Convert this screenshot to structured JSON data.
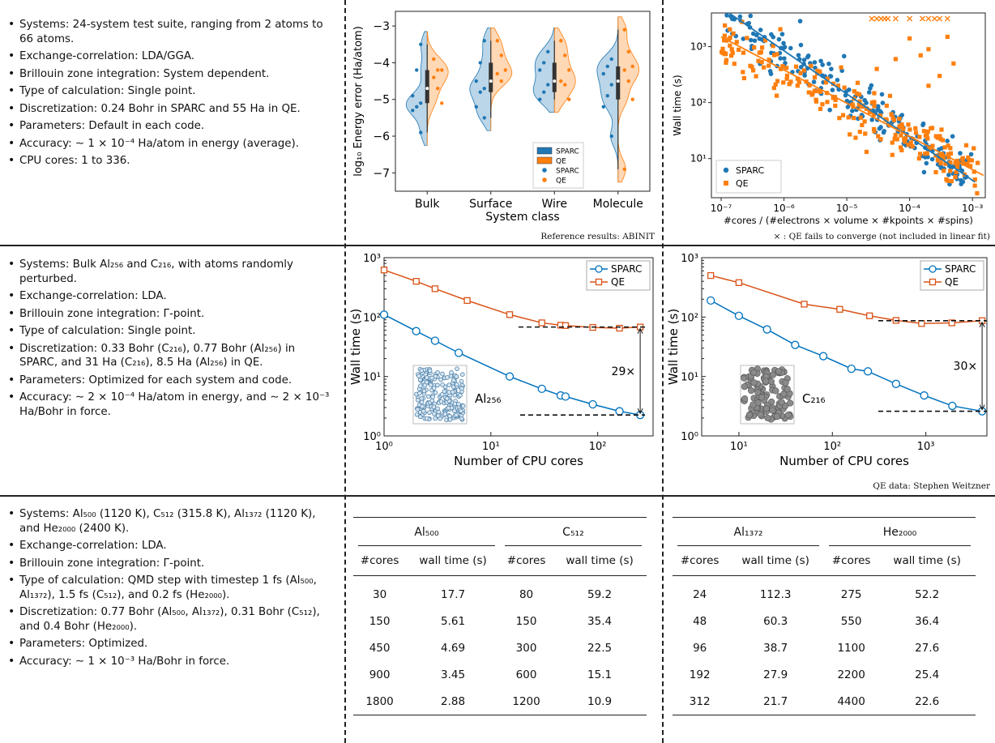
{
  "row1": {
    "bullets": [
      "Systems: 24-system test suite, ranging from 2 atoms to 66 atoms.",
      "Exchange-correlation: LDA/GGA.",
      "Brillouin zone integration: System dependent.",
      "Type of calculation: Single point.",
      "Discretization: 0.24 Bohr in SPARC and 55 Ha in QE.",
      "Parameters: Default in each code.",
      "Accuracy: ∼ 1 × 10⁻⁴ Ha/atom in energy (average).",
      "CPU cores: 1 to 336."
    ],
    "violin_caption": "Reference results: ABINIT",
    "scatter_caption": "× : QE fails to converge (not included in linear fit)"
  },
  "row2": {
    "bullets": [
      "Systems: Bulk Al₂₅₆ and C₂₁₆, with atoms randomly perturbed.",
      "Exchange-correlation: LDA.",
      "Brillouin zone integration: Γ-point.",
      "Type of calculation: Single point.",
      "Discretization: 0.33 Bohr (C₂₁₆), 0.77 Bohr (Al₂₅₆) in SPARC, and 31 Ha (C₂₁₆), 8.5 Ha (Al₂₅₆) in QE.",
      "Parameters: Optimized for each system and code.",
      "Accuracy: ∼ 2 × 10⁻⁴ Ha/atom in energy, and ∼ 2 × 10⁻³ Ha/Bohr in force."
    ],
    "right_caption": "QE data: Stephen Weitzner"
  },
  "row3": {
    "bullets": [
      "Systems: Al₅₀₀ (1120 K), C₅₁₂ (315.8 K), Al₁₃₇₂ (1120 K), and He₂₀₀₀ (2400 K).",
      "Exchange-correlation: LDA.",
      "Brillouin zone integration: Γ-point.",
      "Type of calculation: QMD step with timestep 1 fs (Al₅₀₀, Al₁₃₇₂), 1.5 fs (C₅₁₂), and 0.2 fs (He₂₀₀₀).",
      "Discretization: 0.77 Bohr (Al₅₀₀, Al₁₃₇₂), 0.31 Bohr (C₅₁₂), and 0.4 Bohr (He₂₀₀₀).",
      "Parameters: Optimized.",
      "Accuracy: ∼ 1 × 10⁻³ Ha/Bohr in force."
    ]
  },
  "colors": {
    "sparc": "#1f77b4",
    "qe": "#ff7f0e",
    "qe_line": "#d95319",
    "sparc_line": "#0072bd"
  },
  "chart_data": [
    {
      "id": "violin",
      "type": "violin",
      "xlabel": "System class",
      "ylabel": "log₁₀ Energy error (Ha/atom)",
      "categories": [
        "Bulk",
        "Surface",
        "Wire",
        "Molecule"
      ],
      "ylim": [
        -7.5,
        -2.6
      ],
      "yticks": [
        -3,
        -4,
        -5,
        -6,
        -7
      ],
      "legend": [
        "SPARC",
        "QE",
        "SPARC",
        "QE"
      ],
      "legend_position": "bottom-right",
      "series": [
        {
          "name": "SPARC",
          "points": [
            [
              -3.5,
              -4.2,
              -4.9,
              -5.1,
              -5.2,
              -5.3,
              -5.9
            ],
            [
              -3.4,
              -4.0,
              -4.5,
              -4.7,
              -4.8,
              -5.2,
              -5.5
            ],
            [
              -3.7,
              -4.0,
              -4.2,
              -4.6,
              -4.8,
              -5.0
            ],
            [
              -3.9,
              -4.1,
              -4.3,
              -4.6,
              -4.9,
              -5.2,
              -6.0
            ]
          ]
        },
        {
          "name": "QE",
          "points": [
            [
              -3.9,
              -4.2,
              -4.2,
              -4.4,
              -4.7,
              -5.1
            ],
            [
              -3.4,
              -3.8,
              -4.2,
              -4.3,
              -4.5
            ],
            [
              -3.4,
              -3.8,
              -4.2,
              -4.5,
              -4.6,
              -5.0
            ],
            [
              -3.1,
              -3.7,
              -4.1,
              -4.2,
              -4.5,
              -5.0,
              -6.9
            ]
          ]
        }
      ]
    },
    {
      "id": "scatter",
      "type": "scatter",
      "xlabel": "#cores / (#electrons × volume × #kpoints × #spins)",
      "ylabel": "Wall time (s)",
      "xscale": "log",
      "yscale": "log",
      "xlim": [
        7e-08,
        0.0016
      ],
      "ylim": [
        2,
        4000
      ],
      "xticks": [
        "10⁻⁷",
        "10⁻⁶",
        "10⁻⁵",
        "10⁻⁴",
        "10⁻³"
      ],
      "yticks": [
        "10¹",
        "10²",
        "10³"
      ],
      "legend": [
        "SPARC",
        "QE"
      ],
      "legend_position": "bottom-left",
      "fit_sparc": [
        [
          1e-07,
          5000
        ],
        [
          0.0011,
          3.8
        ]
      ],
      "fit_qe": [
        [
          1e-07,
          1500
        ],
        [
          0.0015,
          5
        ]
      ],
      "qe_fail_x": [
        2.5e-05,
        3e-05,
        3.5e-05,
        4e-05,
        4.5e-05,
        6e-05,
        0.0001,
        0.00016,
        0.0002,
        0.00025,
        0.0003,
        0.0004
      ]
    },
    {
      "id": "al256",
      "type": "line",
      "xlabel": "Number of CPU cores",
      "ylabel": "Wall time (s)",
      "xscale": "log",
      "yscale": "log",
      "xlim": [
        1,
        330
      ],
      "ylim": [
        1,
        1000
      ],
      "xticks": [
        "10⁰",
        "10¹",
        "10²"
      ],
      "yticks": [
        "10⁰",
        "10¹",
        "10²",
        "10³"
      ],
      "legend": [
        "SPARC",
        "QE"
      ],
      "legend_position": "top-right",
      "annotation": "29×",
      "system_label": "Al₂₅₆",
      "series": [
        {
          "name": "SPARC",
          "x": [
            1,
            2,
            3,
            5,
            15,
            30,
            45,
            50,
            90,
            160,
            250
          ],
          "y": [
            110,
            58,
            40,
            25,
            10,
            6.2,
            4.8,
            4.6,
            3.4,
            2.6,
            2.25
          ]
        },
        {
          "name": "QE",
          "x": [
            1,
            2,
            3,
            6,
            15,
            30,
            45,
            50,
            90,
            160,
            250
          ],
          "y": [
            620,
            400,
            300,
            190,
            110,
            80,
            73,
            72,
            67,
            65,
            68
          ]
        }
      ]
    },
    {
      "id": "c216",
      "type": "line",
      "xlabel": "Number of CPU cores",
      "ylabel": "Wall time (s)",
      "xscale": "log",
      "yscale": "log",
      "xlim": [
        4,
        4500
      ],
      "ylim": [
        1,
        1000
      ],
      "xticks": [
        "10¹",
        "10²",
        "10³"
      ],
      "yticks": [
        "10⁰",
        "10¹",
        "10²",
        "10³"
      ],
      "legend": [
        "SPARC",
        "QE"
      ],
      "legend_position": "top-right",
      "annotation": "30×",
      "system_label": "C₂₁₆",
      "series": [
        {
          "name": "SPARC",
          "x": [
            5,
            10,
            20,
            40,
            80,
            160,
            240,
            480,
            960,
            1920,
            4000
          ],
          "y": [
            190,
            105,
            62,
            34,
            22,
            13.5,
            12.2,
            7.5,
            4.8,
            3.2,
            2.6
          ]
        },
        {
          "name": "QE",
          "x": [
            5,
            10,
            50,
            120,
            250,
            480,
            900,
            1900,
            4000
          ],
          "y": [
            500,
            380,
            165,
            135,
            105,
            88,
            78,
            80,
            87
          ]
        }
      ]
    },
    {
      "id": "table-left",
      "type": "table",
      "groups": [
        "Al₅₀₀",
        "C₅₁₂"
      ],
      "columns": [
        "#cores",
        "wall time (s)",
        "#cores",
        "wall time (s)"
      ],
      "rows": [
        [
          "30",
          "17.7",
          "80",
          "59.2"
        ],
        [
          "150",
          "5.61",
          "150",
          "35.4"
        ],
        [
          "450",
          "4.69",
          "300",
          "22.5"
        ],
        [
          "900",
          "3.45",
          "600",
          "15.1"
        ],
        [
          "1800",
          "2.88",
          "1200",
          "10.9"
        ]
      ]
    },
    {
      "id": "table-right",
      "type": "table",
      "groups": [
        "Al₁₃₇₂",
        "He₂₀₀₀"
      ],
      "columns": [
        "#cores",
        "wall time (s)",
        "#cores",
        "wall time (s)"
      ],
      "rows": [
        [
          "24",
          "112.3",
          "275",
          "52.2"
        ],
        [
          "48",
          "60.3",
          "550",
          "36.4"
        ],
        [
          "96",
          "38.7",
          "1100",
          "27.6"
        ],
        [
          "192",
          "27.9",
          "2200",
          "25.4"
        ],
        [
          "312",
          "21.7",
          "4400",
          "22.6"
        ]
      ]
    }
  ]
}
